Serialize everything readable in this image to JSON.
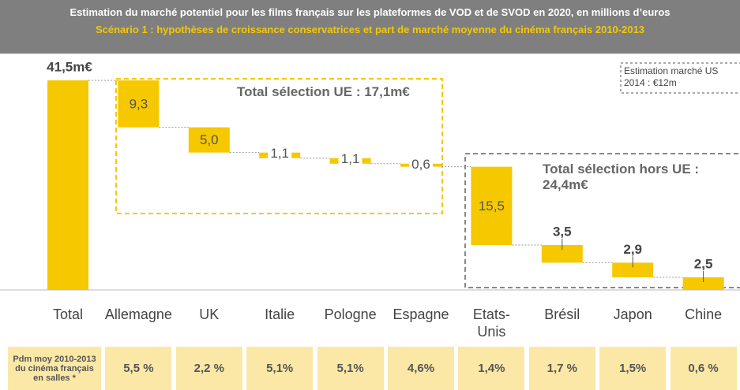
{
  "chart_data": {
    "type": "waterfall",
    "title": "Estimation du marché potentiel pour les films français sur les plateformes de VOD et de SVOD en 2020, en millions d’euros",
    "subtitle": "Scénario 1 : hypothèses de croissance conservatrices et part de marché moyenne du cinéma français 2010-2013",
    "categories": [
      "Total",
      "Allemagne",
      "UK",
      "Italie",
      "Pologne",
      "Espagne",
      "Etats-Unis",
      "Brésil",
      "Japon",
      "Chine"
    ],
    "values": [
      41.5,
      9.3,
      5.0,
      1.1,
      1.1,
      0.6,
      15.5,
      3.5,
      2.9,
      2.5
    ],
    "value_labels": [
      "41,5m€",
      "9,3",
      "5,0",
      "1,1",
      "1,1",
      "0,6",
      "15,5",
      "3,5",
      "2,9",
      "2,5"
    ],
    "color": "#f5c800",
    "annotations": {
      "eu_total": "Total sélection UE : 17,1m€",
      "non_eu_total": "Total sélection hors UE : 24,4m€",
      "us_note": "Estimation marché US 2014 : €12m"
    }
  },
  "table": {
    "row_label": "Pdm moy 2010-2013 du cinéma français en salles *",
    "cells": [
      "5,5 %",
      "2,2 %",
      "5,1%",
      "5,1%",
      "4,6%",
      "1,4%",
      "1,7 %",
      "1,5%",
      "0,6 %"
    ]
  }
}
